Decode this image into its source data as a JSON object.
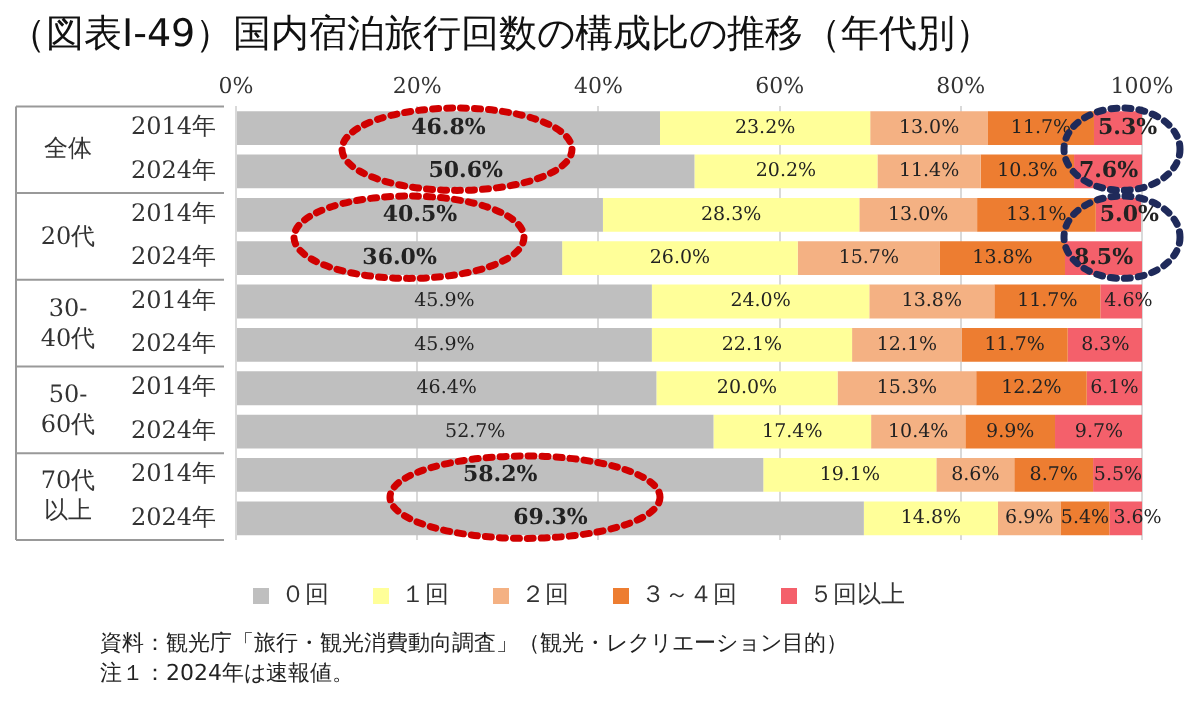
{
  "chart_data": {
    "type": "bar",
    "orientation": "horizontal",
    "stacked": true,
    "title": "（図表Ⅰ-49）国内宿泊旅行回数の構成比の推移（年代別）",
    "categories": [
      "2014年",
      "2024年",
      "2014年",
      "2024年",
      "2014年",
      "2024年",
      "2014年",
      "2024年",
      "2014年",
      "2024年"
    ],
    "series": [
      {
        "name": "０回",
        "color": "#bfbfbf",
        "values": [
          46.8,
          50.6,
          40.5,
          36.0,
          45.9,
          45.9,
          46.4,
          52.7,
          58.2,
          69.3
        ],
        "value_labels": [
          "46.8%",
          "50.6%",
          "40.5%",
          "36.0%",
          "45.9%",
          "45.9%",
          "46.4%",
          "52.7%",
          "58.2%",
          "69.3%"
        ]
      },
      {
        "name": "１回",
        "color": "#ffff99",
        "values": [
          23.2,
          20.2,
          28.3,
          26.0,
          24.0,
          22.1,
          20.0,
          17.4,
          19.1,
          14.8
        ],
        "value_labels": [
          "23.2%",
          "20.2%",
          "28.3%",
          "26.0%",
          "24.0%",
          "22.1%",
          "20.0%",
          "17.4%",
          "19.1%",
          "14.8%"
        ]
      },
      {
        "name": "２回",
        "color": "#f4b183",
        "values": [
          13.0,
          11.4,
          13.0,
          15.7,
          13.8,
          12.1,
          15.3,
          10.4,
          8.6,
          6.9
        ],
        "value_labels": [
          "13.0%",
          "11.4%",
          "13.0%",
          "15.7%",
          "13.8%",
          "12.1%",
          "15.3%",
          "10.4%",
          "8.6%",
          "6.9%"
        ]
      },
      {
        "name": "３～４回",
        "color": "#ed7d31",
        "values": [
          11.7,
          10.3,
          13.1,
          13.8,
          11.7,
          11.7,
          12.2,
          9.9,
          8.7,
          5.4
        ],
        "value_labels": [
          "11.7%",
          "10.3%",
          "13.1%",
          "13.8%",
          "11.7%",
          "11.7%",
          "12.2%",
          "9.9%",
          "8.7%",
          "5.4%"
        ]
      },
      {
        "name": "５回以上",
        "color": "#f4606b",
        "values": [
          5.3,
          7.6,
          5.0,
          8.5,
          4.6,
          8.3,
          6.1,
          9.7,
          5.5,
          3.6
        ],
        "value_labels": [
          "5.3%",
          "7.6%",
          "5.0%",
          "8.5%",
          "4.6%",
          "8.3%",
          "6.1%",
          "9.7%",
          "5.5%",
          "3.6%"
        ]
      }
    ],
    "xlim": [
      0,
      100
    ],
    "xticks": [
      {
        "value": 0,
        "label": "0%"
      },
      {
        "value": 20,
        "label": "20%"
      },
      {
        "value": 40,
        "label": "40%"
      },
      {
        "value": 60,
        "label": "60%"
      },
      {
        "value": 80,
        "label": "80%"
      },
      {
        "value": 100,
        "label": "100%"
      }
    ],
    "grid": "x",
    "legend": "bottom",
    "annotations": [
      "全体",
      "20代",
      "30-40代",
      "50-60代",
      "70代以上",
      "資料：観光庁「旅行・観光消費動向調査」（観光・レクリエーション目的）",
      "注１：2024年は速報値。"
    ]
  }
}
